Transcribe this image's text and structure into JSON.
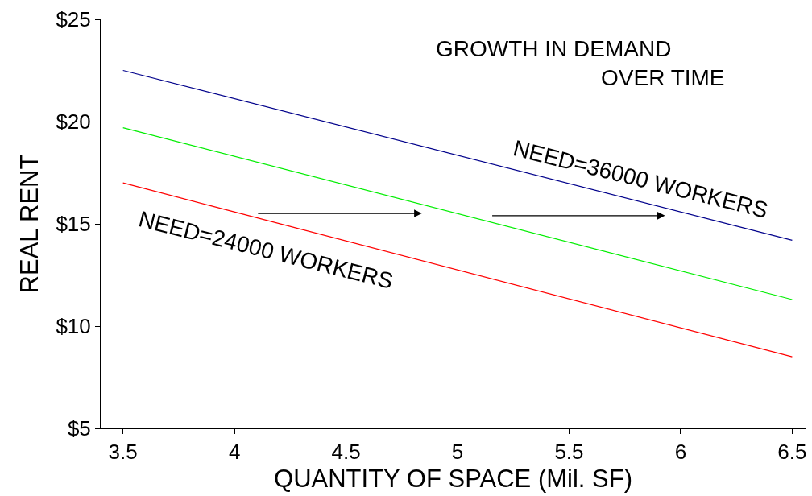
{
  "chart_data": {
    "type": "line",
    "xlabel": "QUANTITY OF SPACE (Mil. SF)",
    "ylabel": "REAL RENT",
    "x": [
      3.5,
      6.5
    ],
    "series": [
      {
        "color": "#00008b",
        "values": [
          22.5,
          14.2
        ]
      },
      {
        "color": "#00ee00",
        "values": [
          19.7,
          11.3
        ]
      },
      {
        "color": "#ff0000",
        "values": [
          17,
          8.5
        ]
      }
    ],
    "xlim": [
      3.4,
      6.56
    ],
    "xticks": [
      3.5,
      4,
      4.5,
      5,
      5.5,
      6,
      6.5
    ],
    "ylim": [
      5,
      25
    ],
    "yticks": [
      {
        "value": 5,
        "label": "$5"
      },
      {
        "value": 10,
        "label": "$10"
      },
      {
        "value": 15,
        "label": "$15"
      },
      {
        "value": 20,
        "label": "$20"
      },
      {
        "value": 25,
        "label": "$25"
      }
    ],
    "marker": "none",
    "line_style": "solid",
    "annotations": [
      "GROWTH IN DEMAND",
      "OVER TIME",
      "NEED=36000 WORKERS",
      "NEED=24000 WORKERS"
    ]
  }
}
